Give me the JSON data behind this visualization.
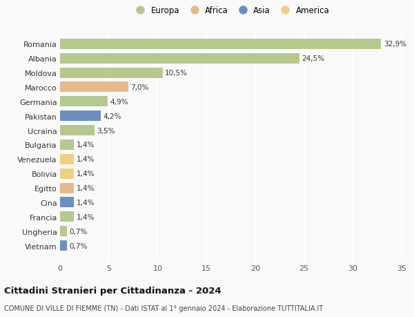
{
  "countries": [
    "Romania",
    "Albania",
    "Moldova",
    "Marocco",
    "Germania",
    "Pakistan",
    "Ucraina",
    "Bulgaria",
    "Venezuela",
    "Bolivia",
    "Egitto",
    "Cina",
    "Francia",
    "Ungheria",
    "Vietnam"
  ],
  "values": [
    32.9,
    24.5,
    10.5,
    7.0,
    4.9,
    4.2,
    3.5,
    1.4,
    1.4,
    1.4,
    1.4,
    1.4,
    1.4,
    0.7,
    0.7
  ],
  "labels": [
    "32,9%",
    "24,5%",
    "10,5%",
    "7,0%",
    "4,9%",
    "4,2%",
    "3,5%",
    "1,4%",
    "1,4%",
    "1,4%",
    "1,4%",
    "1,4%",
    "1,4%",
    "0,7%",
    "0,7%"
  ],
  "continent": [
    "Europa",
    "Europa",
    "Europa",
    "Africa",
    "Europa",
    "Asia",
    "Europa",
    "Europa",
    "America",
    "America",
    "Africa",
    "Asia",
    "Europa",
    "Europa",
    "Asia"
  ],
  "colors": {
    "Europa": "#b5c98e",
    "Africa": "#e8b98a",
    "Asia": "#6b8fbf",
    "America": "#f0d080"
  },
  "legend_order": [
    "Europa",
    "Africa",
    "Asia",
    "America"
  ],
  "title": "Cittadini Stranieri per Cittadinanza - 2024",
  "subtitle": "COMUNE DI VILLE DI FIEMME (TN) - Dati ISTAT al 1° gennaio 2024 - Elaborazione TUTTITALIA.IT",
  "xlim": [
    0,
    35
  ],
  "xticks": [
    0,
    5,
    10,
    15,
    20,
    25,
    30,
    35
  ],
  "background_color": "#f9f9f9",
  "grid_color": "#ffffff"
}
